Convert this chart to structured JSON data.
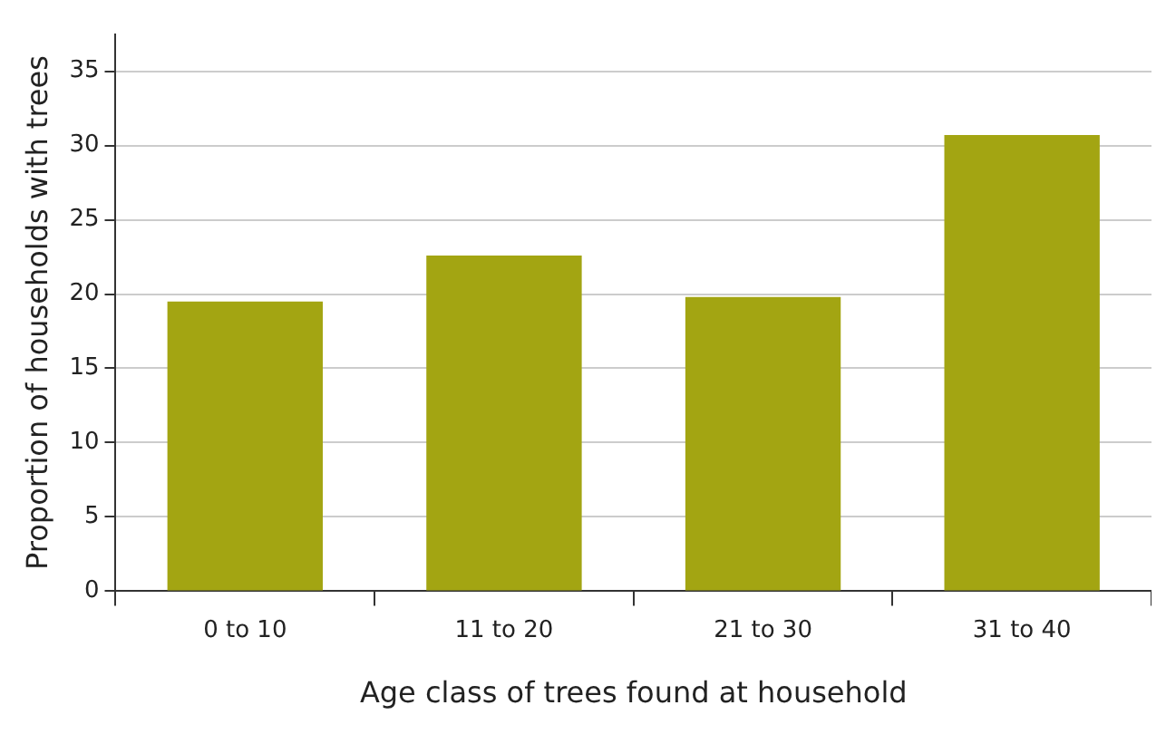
{
  "chart_data": {
    "type": "bar",
    "xlabel": "Age class of trees found at household",
    "ylabel": "Proportion of households with trees",
    "categories": [
      "0 to 10",
      "11 to 20",
      "21 to 30",
      "31 to 40"
    ],
    "series": [
      {
        "color": "#a3a512",
        "values": [
          19.5,
          22.6,
          19.8,
          30.7
        ]
      }
    ],
    "ylim": [
      0,
      37.5
    ],
    "yticks": [
      0,
      5,
      10,
      15,
      20,
      25,
      30,
      35
    ],
    "grid": "y",
    "legend": false
  }
}
